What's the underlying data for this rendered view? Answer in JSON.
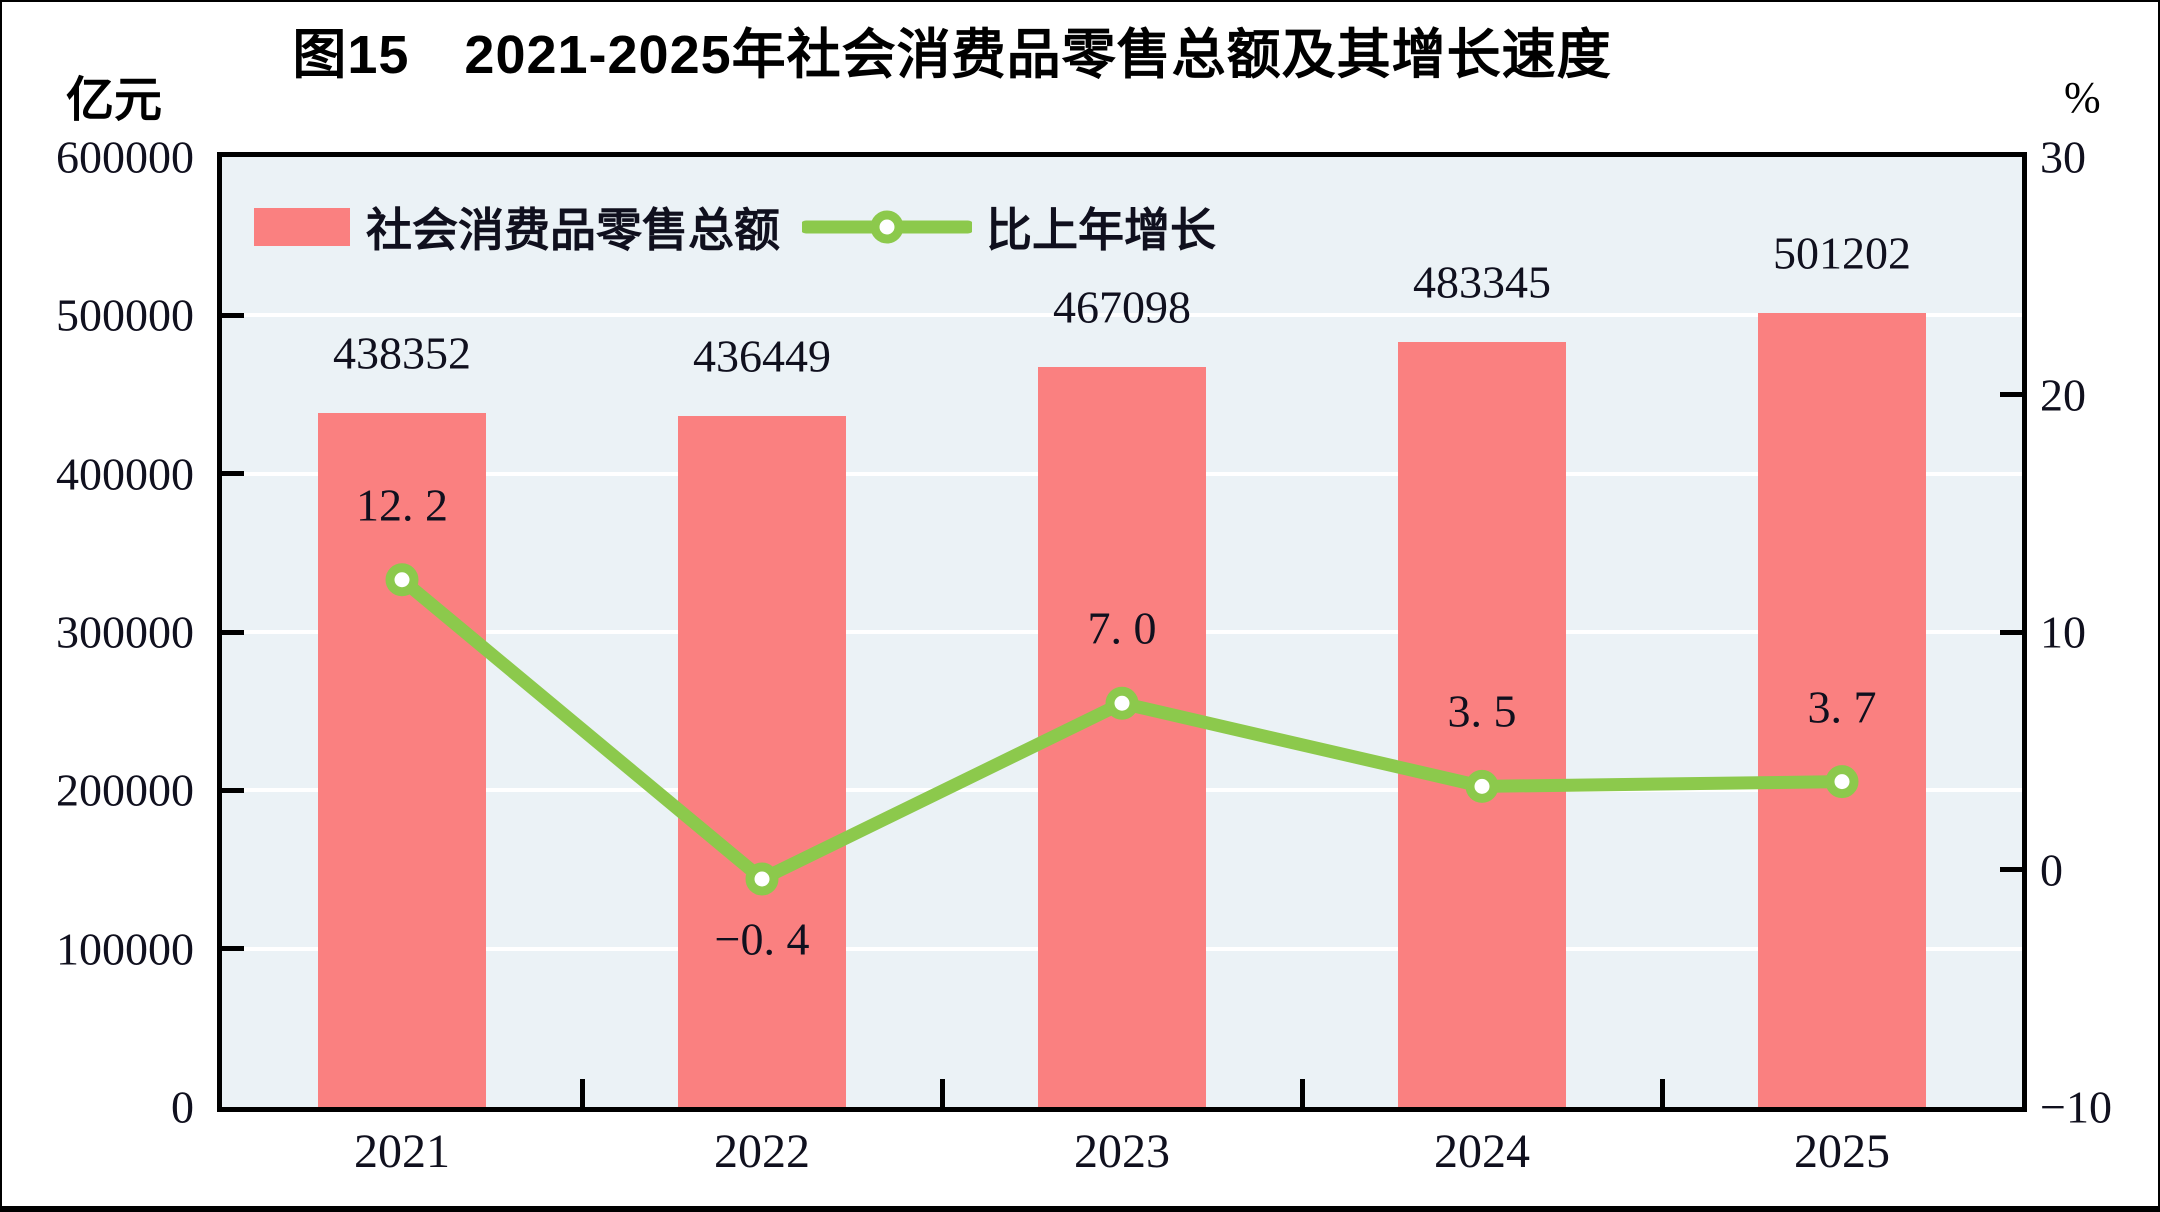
{
  "chart_data": {
    "type": "bar+line",
    "title": "图15　2021-2025年社会消费品零售总额及其增长速度",
    "categories": [
      "2021",
      "2022",
      "2023",
      "2024",
      "2025"
    ],
    "series": [
      {
        "name": "社会消费品零售总额",
        "type": "bar",
        "axis": "left",
        "unit": "亿元",
        "color": "#FA8080",
        "values": [
          438352,
          436449,
          467098,
          483345,
          501202
        ],
        "labels": [
          "438352",
          "436449",
          "467098",
          "483345",
          "501202"
        ]
      },
      {
        "name": "比上年增长",
        "type": "line",
        "axis": "right",
        "unit": "%",
        "color": "#8CC94C",
        "marker": "circle-open",
        "marker_fill": "#ffffff",
        "values": [
          12.2,
          -0.4,
          7.0,
          3.5,
          3.7
        ],
        "labels": [
          "12. 2",
          "−0. 4",
          "7. 0",
          "3. 5",
          "3. 7"
        ],
        "label_positions": [
          "above",
          "below",
          "above",
          "above",
          "above"
        ]
      }
    ],
    "left_axis": {
      "unit": "亿元",
      "min": 0,
      "max": 600000,
      "ticks": [
        {
          "label": "0",
          "value": 0
        },
        {
          "label": "100000",
          "value": 100000
        },
        {
          "label": "200000",
          "value": 200000
        },
        {
          "label": "300000",
          "value": 300000
        },
        {
          "label": "400000",
          "value": 400000
        },
        {
          "label": "500000",
          "value": 500000
        },
        {
          "label": "600000",
          "value": 600000
        }
      ]
    },
    "right_axis": {
      "unit": "%",
      "min": -10,
      "max": 30,
      "ticks": [
        {
          "label": "−10",
          "value": -10
        },
        {
          "label": "0",
          "value": 0
        },
        {
          "label": "10",
          "value": 10
        },
        {
          "label": "20",
          "value": 20
        },
        {
          "label": "30",
          "value": 30
        }
      ]
    },
    "grid": true,
    "legend_position": "top-left-inside",
    "plot_background": "#EBF2F6",
    "gridline_color": "#FFFFFF",
    "axis_color": "#000000"
  }
}
